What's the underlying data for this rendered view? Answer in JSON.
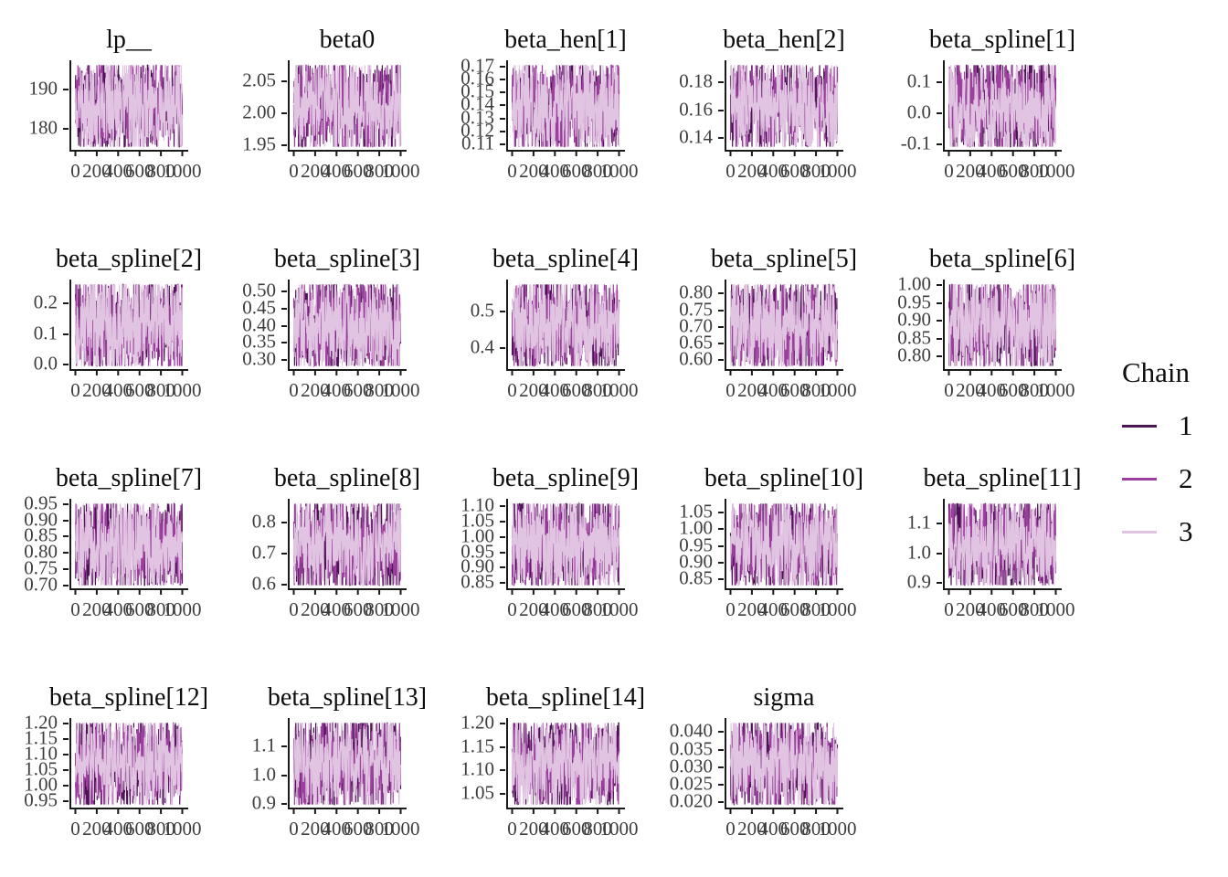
{
  "figure": {
    "background": "#ffffff",
    "title_color": "#0d0d0d",
    "axis_text_color": "#3d3d3d",
    "axis_line_color": "#1a1a1a"
  },
  "legend": {
    "title": "Chain",
    "items": [
      {
        "label": "1",
        "color": "#4e1257"
      },
      {
        "label": "2",
        "color": "#9c3f9e"
      },
      {
        "label": "3",
        "color": "#e0c4e1"
      }
    ]
  },
  "chart_data": {
    "type": "line",
    "subtype": "mcmc-trace-grid",
    "description": "Grid of MCMC trace plots, 3 chains of 1000 iterations each, one panel per parameter",
    "columns": 5,
    "x_range": [
      0,
      1000
    ],
    "x_ticks": [
      {
        "label": "0",
        "value": 0
      },
      {
        "label": "200",
        "value": 200
      },
      {
        "label": "400",
        "value": 400
      },
      {
        "label": "600",
        "value": 600
      },
      {
        "label": "800",
        "value": 800
      },
      {
        "label": "1000",
        "value": 1000
      }
    ],
    "n_points": 380,
    "seed": 42,
    "panels": [
      {
        "title": "lp__",
        "y_ticks": [
          {
            "label": "190",
            "value": 190
          },
          {
            "label": "180",
            "value": 180
          }
        ],
        "band": [
          175.5,
          196.2
        ]
      },
      {
        "title": "beta0",
        "y_ticks": [
          {
            "label": "2.05",
            "value": 2.05
          },
          {
            "label": "2.00",
            "value": 2.0
          },
          {
            "label": "1.95",
            "value": 1.95
          }
        ],
        "band": [
          1.947,
          2.076
        ]
      },
      {
        "title": "beta_hen[1]",
        "y_ticks": [
          {
            "label": "0.17",
            "value": 0.17
          },
          {
            "label": "0.16",
            "value": 0.16
          },
          {
            "label": "0.15",
            "value": 0.15
          },
          {
            "label": "0.14",
            "value": 0.14
          },
          {
            "label": "0.13",
            "value": 0.13
          },
          {
            "label": "0.12",
            "value": 0.12
          },
          {
            "label": "0.11",
            "value": 0.11
          }
        ],
        "band": [
          0.108,
          0.171
        ]
      },
      {
        "title": "beta_hen[2]",
        "y_ticks": [
          {
            "label": "0.18",
            "value": 0.18
          },
          {
            "label": "0.16",
            "value": 0.16
          },
          {
            "label": "0.14",
            "value": 0.14
          }
        ],
        "band": [
          0.134,
          0.192
        ]
      },
      {
        "title": "beta_spline[1]",
        "y_ticks": [
          {
            "label": "0.1",
            "value": 0.1
          },
          {
            "label": "0.0",
            "value": 0.0
          },
          {
            "label": "-0.1",
            "value": -0.1
          }
        ],
        "band": [
          -0.108,
          0.155
        ]
      },
      {
        "title": "beta_spline[2]",
        "y_ticks": [
          {
            "label": "0.2",
            "value": 0.2
          },
          {
            "label": "0.1",
            "value": 0.1
          },
          {
            "label": "0.0",
            "value": 0.0
          }
        ],
        "band": [
          -0.004,
          0.263
        ]
      },
      {
        "title": "beta_spline[3]",
        "y_ticks": [
          {
            "label": "0.50",
            "value": 0.5
          },
          {
            "label": "0.45",
            "value": 0.45
          },
          {
            "label": "0.40",
            "value": 0.4
          },
          {
            "label": "0.35",
            "value": 0.35
          },
          {
            "label": "0.30",
            "value": 0.3
          }
        ],
        "band": [
          0.283,
          0.52
        ]
      },
      {
        "title": "beta_spline[4]",
        "y_ticks": [
          {
            "label": "0.5",
            "value": 0.5
          },
          {
            "label": "0.4",
            "value": 0.4
          }
        ],
        "band": [
          0.352,
          0.574
        ]
      },
      {
        "title": "beta_spline[5]",
        "y_ticks": [
          {
            "label": "0.80",
            "value": 0.8
          },
          {
            "label": "0.75",
            "value": 0.75
          },
          {
            "label": "0.70",
            "value": 0.7
          },
          {
            "label": "0.65",
            "value": 0.65
          },
          {
            "label": "0.60",
            "value": 0.6
          }
        ],
        "band": [
          0.583,
          0.827
        ]
      },
      {
        "title": "beta_spline[6]",
        "y_ticks": [
          {
            "label": "1.00",
            "value": 1.0
          },
          {
            "label": "0.95",
            "value": 0.95
          },
          {
            "label": "0.90",
            "value": 0.9
          },
          {
            "label": "0.85",
            "value": 0.85
          },
          {
            "label": "0.80",
            "value": 0.8
          }
        ],
        "band": [
          0.773,
          1.002
        ]
      },
      {
        "title": "beta_spline[7]",
        "y_ticks": [
          {
            "label": "0.95",
            "value": 0.95
          },
          {
            "label": "0.90",
            "value": 0.9
          },
          {
            "label": "0.85",
            "value": 0.85
          },
          {
            "label": "0.80",
            "value": 0.8
          },
          {
            "label": "0.75",
            "value": 0.75
          },
          {
            "label": "0.70",
            "value": 0.7
          }
        ],
        "band": [
          0.701,
          0.951
        ]
      },
      {
        "title": "beta_spline[8]",
        "y_ticks": [
          {
            "label": "0.8",
            "value": 0.8
          },
          {
            "label": "0.7",
            "value": 0.7
          },
          {
            "label": "0.6",
            "value": 0.6
          }
        ],
        "band": [
          0.598,
          0.859
        ]
      },
      {
        "title": "beta_spline[9]",
        "y_ticks": [
          {
            "label": "1.10",
            "value": 1.1
          },
          {
            "label": "1.05",
            "value": 1.05
          },
          {
            "label": "1.00",
            "value": 1.0
          },
          {
            "label": "0.95",
            "value": 0.95
          },
          {
            "label": "0.90",
            "value": 0.9
          },
          {
            "label": "0.85",
            "value": 0.85
          }
        ],
        "band": [
          0.843,
          1.107
        ]
      },
      {
        "title": "beta_spline[10]",
        "y_ticks": [
          {
            "label": "1.05",
            "value": 1.05
          },
          {
            "label": "1.00",
            "value": 1.0
          },
          {
            "label": "0.95",
            "value": 0.95
          },
          {
            "label": "0.90",
            "value": 0.9
          },
          {
            "label": "0.85",
            "value": 0.85
          }
        ],
        "band": [
          0.831,
          1.077
        ]
      },
      {
        "title": "beta_spline[11]",
        "y_ticks": [
          {
            "label": "1.1",
            "value": 1.1
          },
          {
            "label": "1.0",
            "value": 1.0
          },
          {
            "label": "0.9",
            "value": 0.9
          }
        ],
        "band": [
          0.893,
          1.167
        ]
      },
      {
        "title": "beta_spline[12]",
        "y_ticks": [
          {
            "label": "1.20",
            "value": 1.2
          },
          {
            "label": "1.15",
            "value": 1.15
          },
          {
            "label": "1.10",
            "value": 1.1
          },
          {
            "label": "1.05",
            "value": 1.05
          },
          {
            "label": "1.00",
            "value": 1.0
          },
          {
            "label": "0.95",
            "value": 0.95
          }
        ],
        "band": [
          0.939,
          1.201
        ]
      },
      {
        "title": "beta_spline[13]",
        "y_ticks": [
          {
            "label": "1.1",
            "value": 1.1
          },
          {
            "label": "1.0",
            "value": 1.0
          },
          {
            "label": "0.9",
            "value": 0.9
          }
        ],
        "band": [
          0.899,
          1.181
        ]
      },
      {
        "title": "beta_spline[14]",
        "y_ticks": [
          {
            "label": "1.20",
            "value": 1.2
          },
          {
            "label": "1.15",
            "value": 1.15
          },
          {
            "label": "1.10",
            "value": 1.1
          },
          {
            "label": "1.05",
            "value": 1.05
          }
        ],
        "band": [
          1.027,
          1.201
        ]
      },
      {
        "title": "sigma",
        "y_ticks": [
          {
            "label": "0.040",
            "value": 0.04
          },
          {
            "label": "0.035",
            "value": 0.035
          },
          {
            "label": "0.030",
            "value": 0.03
          },
          {
            "label": "0.025",
            "value": 0.025
          },
          {
            "label": "0.020",
            "value": 0.02
          }
        ],
        "band": [
          0.0194,
          0.0426
        ]
      }
    ]
  }
}
